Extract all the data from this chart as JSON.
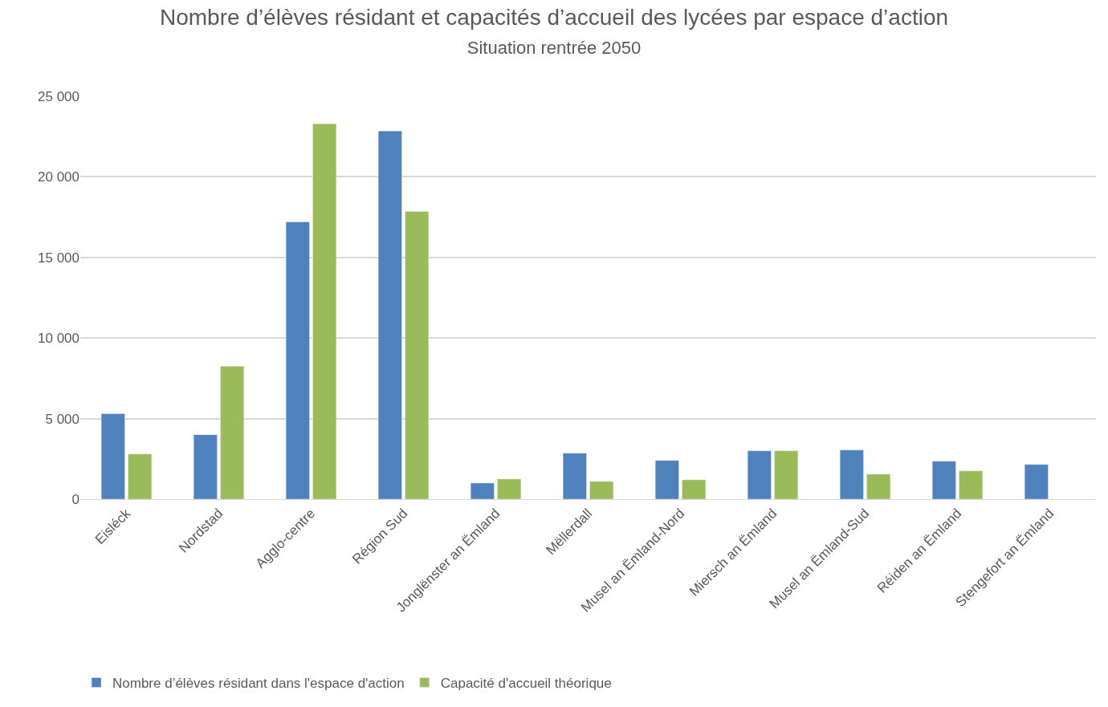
{
  "chart_data": {
    "type": "bar",
    "title": "Nombre d’élèves résidant et capacités d’accueil des lycées par espace d’action",
    "subtitle": "Situation rentrée 2050",
    "categories": [
      "Eisléck",
      "Nordstad",
      "Agglo-centre",
      "Région Sud",
      "Jonglënster an Ëmland",
      "Mëllerdall",
      "Musel an Ëmland-Nord",
      "Miersch an Ëmland",
      "Musel an Ëmland-Sud",
      "Réiden an Ëmland",
      "Stengefort an Ëmland"
    ],
    "series": [
      {
        "name": "Nombre d’élèves résidant dans l'espace d'action",
        "color": "#4f81bd",
        "values": [
          5300,
          4000,
          17200,
          22850,
          1000,
          2850,
          2400,
          3000,
          3050,
          2350,
          2150
        ]
      },
      {
        "name": "Capacité d'accueil théorique",
        "color": "#9bbb59",
        "values": [
          2800,
          8250,
          23300,
          17850,
          1250,
          1100,
          1200,
          3000,
          1550,
          1750,
          null
        ]
      }
    ],
    "ylim": [
      0,
      25000
    ],
    "yticks": [
      0,
      {
        "value": 5000,
        "label": "5 000"
      },
      {
        "value": 10000,
        "label": "10 000"
      },
      {
        "value": 15000,
        "label": "15 000"
      },
      {
        "value": 20000,
        "label": "20 000"
      },
      {
        "value": 25000,
        "label": "25 000"
      }
    ],
    "grid": "y",
    "legend": "bottom"
  }
}
